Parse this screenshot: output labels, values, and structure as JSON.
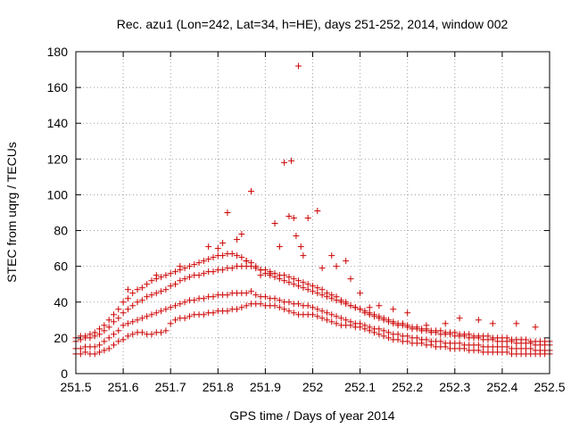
{
  "chart_data": {
    "type": "scatter",
    "title": "Rec. azu1 (Lon=242, Lat=34, h=HE), days 251-252, 2014, window 002",
    "xlabel": "GPS time / Days of year 2014",
    "ylabel": "STEC from uqrg / TECUs",
    "xlim": [
      251.5,
      252.5
    ],
    "ylim": [
      0,
      180
    ],
    "xticks": [
      251.5,
      251.6,
      251.7,
      251.8,
      251.9,
      252,
      252.1,
      252.2,
      252.3,
      252.4,
      252.5
    ],
    "xtick_labels": [
      "251.5",
      "251.6",
      "251.7",
      "251.8",
      "251.9",
      "252",
      "252.1",
      "252.2",
      "252.3",
      "252.4",
      "252.5"
    ],
    "yticks": [
      0,
      20,
      40,
      60,
      80,
      100,
      120,
      140,
      160,
      180
    ],
    "ytick_labels": [
      "0",
      "20",
      "40",
      "60",
      "80",
      "100",
      "120",
      "140",
      "160",
      "180"
    ],
    "grid": true,
    "legend": "none",
    "marker": "plus",
    "color": "#cc0000",
    "series": [
      {
        "x": [
          251.5,
          251.51,
          251.52,
          251.53,
          251.54,
          251.55,
          251.56,
          251.57,
          251.58,
          251.59,
          251.6,
          251.61,
          251.62,
          251.63,
          251.64,
          251.65,
          251.66,
          251.67,
          251.68,
          251.69,
          251.7,
          251.71,
          251.72,
          251.73,
          251.74,
          251.75,
          251.76,
          251.77,
          251.78,
          251.79,
          251.8,
          251.81,
          251.82,
          251.83,
          251.84,
          251.85,
          251.86,
          251.87,
          251.88,
          251.89,
          251.9,
          251.91,
          251.92,
          251.93,
          251.94,
          251.95,
          251.96,
          251.97,
          251.98,
          251.99,
          252,
          252.01,
          252.02,
          252.03,
          252.04,
          252.05,
          252.06,
          252.07,
          252.08,
          252.09,
          252.1,
          252.11,
          252.12,
          252.13,
          252.14,
          252.15,
          252.16,
          252.17,
          252.18,
          252.19,
          252.2,
          252.21,
          252.22,
          252.23,
          252.24,
          252.25,
          252.26,
          252.27,
          252.28,
          252.29,
          252.3,
          252.31,
          252.32,
          252.33,
          252.34,
          252.35,
          252.36,
          252.37,
          252.38,
          252.39,
          252.4,
          252.41,
          252.42,
          252.43,
          252.44,
          252.45,
          252.46,
          252.47,
          252.48,
          252.49,
          252.5
        ],
        "y": [
          11,
          11,
          12,
          11,
          11,
          12,
          13,
          14,
          16,
          18,
          19,
          21,
          22,
          23,
          23,
          22,
          22,
          23,
          23,
          24,
          28,
          30,
          31,
          31,
          32,
          33,
          33,
          33,
          34,
          34,
          35,
          35,
          35,
          36,
          36,
          37,
          38,
          39,
          39,
          39,
          38,
          38,
          38,
          37,
          36,
          35,
          34,
          33,
          33,
          33,
          33,
          32,
          31,
          30,
          29,
          28,
          27,
          27,
          27,
          26,
          26,
          25,
          24,
          23,
          22,
          21,
          20,
          19,
          19,
          18,
          18,
          17,
          17,
          17,
          16,
          16,
          15,
          15,
          15,
          14,
          14,
          14,
          14,
          13,
          13,
          13,
          12,
          12,
          12,
          12,
          12,
          12,
          11,
          11,
          11,
          11,
          11,
          11,
          11,
          11,
          11
        ]
      },
      {
        "x": [
          251.5,
          251.51,
          251.52,
          251.53,
          251.54,
          251.55,
          251.56,
          251.57,
          251.58,
          251.59,
          251.6,
          251.61,
          251.62,
          251.63,
          251.64,
          251.65,
          251.66,
          251.67,
          251.68,
          251.69,
          251.7,
          251.71,
          251.72,
          251.73,
          251.74,
          251.75,
          251.76,
          251.77,
          251.78,
          251.79,
          251.8,
          251.81,
          251.82,
          251.83,
          251.84,
          251.85,
          251.86,
          251.87,
          251.88,
          251.89,
          251.9,
          251.91,
          251.92,
          251.93,
          251.94,
          251.95,
          251.96,
          251.97,
          251.98,
          251.99,
          252,
          252.01,
          252.02,
          252.03,
          252.04,
          252.05,
          252.06,
          252.07,
          252.08,
          252.09,
          252.1,
          252.11,
          252.12,
          252.13,
          252.14,
          252.15,
          252.16,
          252.17,
          252.18,
          252.19,
          252.2,
          252.21,
          252.22,
          252.23,
          252.24,
          252.25,
          252.26,
          252.27,
          252.28,
          252.29,
          252.3,
          252.31,
          252.32,
          252.33,
          252.34,
          252.35,
          252.36,
          252.37,
          252.38,
          252.39,
          252.4,
          252.41,
          252.42,
          252.43,
          252.44,
          252.45,
          252.46,
          252.47,
          252.48,
          252.49,
          252.5
        ],
        "y": [
          14,
          14,
          15,
          15,
          15,
          16,
          18,
          20,
          22,
          24,
          27,
          28,
          29,
          30,
          31,
          32,
          33,
          34,
          35,
          36,
          37,
          38,
          39,
          40,
          41,
          41,
          42,
          42,
          43,
          43,
          44,
          44,
          44,
          45,
          45,
          45,
          45,
          46,
          44,
          43,
          43,
          42,
          42,
          41,
          40,
          40,
          39,
          39,
          38,
          38,
          37,
          36,
          35,
          34,
          33,
          32,
          31,
          30,
          29,
          28,
          28,
          27,
          26,
          25,
          25,
          24,
          23,
          22,
          22,
          21,
          21,
          20,
          20,
          19,
          19,
          18,
          18,
          18,
          17,
          17,
          17,
          17,
          16,
          16,
          16,
          16,
          15,
          15,
          15,
          15,
          15,
          15,
          14,
          14,
          14,
          14,
          14,
          13,
          13,
          13,
          13
        ]
      },
      {
        "x": [
          251.5,
          251.51,
          251.52,
          251.53,
          251.54,
          251.55,
          251.56,
          251.57,
          251.58,
          251.59,
          251.6,
          251.61,
          251.62,
          251.63,
          251.64,
          251.65,
          251.66,
          251.67,
          251.68,
          251.69,
          251.7,
          251.71,
          251.72,
          251.73,
          251.74,
          251.75,
          251.76,
          251.77,
          251.78,
          251.79,
          251.8,
          251.81,
          251.82,
          251.83,
          251.84,
          251.85,
          251.86,
          251.87,
          251.88,
          251.89,
          251.9,
          251.91,
          251.92,
          251.93,
          251.94,
          251.95,
          251.96,
          251.97,
          251.98,
          251.99,
          252,
          252.01,
          252.02,
          252.03,
          252.04,
          252.05,
          252.06,
          252.07,
          252.08,
          252.09,
          252.1,
          252.11,
          252.12,
          252.13,
          252.14,
          252.15,
          252.16,
          252.17,
          252.18,
          252.19,
          252.2,
          252.21,
          252.22,
          252.23,
          252.24,
          252.25,
          252.26,
          252.27,
          252.28,
          252.29,
          252.3,
          252.31,
          252.32,
          252.33,
          252.34,
          252.35,
          252.36,
          252.37,
          252.38,
          252.39,
          252.4,
          252.41,
          252.42,
          252.43,
          252.44,
          252.45,
          252.46,
          252.47,
          252.48,
          252.49,
          252.5
        ],
        "y": [
          18,
          19,
          20,
          20,
          21,
          22,
          24,
          26,
          29,
          31,
          34,
          36,
          38,
          40,
          41,
          43,
          44,
          45,
          46,
          47,
          49,
          50,
          52,
          53,
          54,
          55,
          55,
          56,
          57,
          57,
          58,
          58,
          59,
          59,
          60,
          60,
          60,
          60,
          59,
          58,
          58,
          57,
          56,
          55,
          55,
          54,
          53,
          52,
          51,
          50,
          49,
          48,
          47,
          45,
          44,
          43,
          41,
          40,
          38,
          37,
          36,
          34,
          33,
          32,
          31,
          30,
          29,
          28,
          27,
          27,
          26,
          25,
          25,
          24,
          24,
          23,
          23,
          22,
          22,
          22,
          21,
          21,
          21,
          20,
          20,
          20,
          19,
          19,
          19,
          18,
          18,
          18,
          18,
          17,
          17,
          17,
          17,
          16,
          16,
          16,
          16
        ]
      },
      {
        "x": [
          251.5,
          251.51,
          251.52,
          251.53,
          251.54,
          251.55,
          251.56,
          251.57,
          251.58,
          251.59,
          251.6,
          251.61,
          251.62,
          251.63,
          251.64,
          251.65,
          251.66,
          251.67,
          251.68,
          251.69,
          251.7,
          251.71,
          251.72,
          251.73,
          251.74,
          251.75,
          251.76,
          251.77,
          251.78,
          251.79,
          251.8,
          251.81,
          251.82,
          251.83,
          251.84,
          251.85,
          251.86,
          251.87,
          251.88,
          251.89,
          251.9,
          251.91,
          251.92,
          251.93,
          251.94,
          251.95,
          251.96,
          251.97,
          251.98,
          251.99,
          252,
          252.01,
          252.02,
          252.03,
          252.04,
          252.05,
          252.06,
          252.07,
          252.08,
          252.09,
          252.1,
          252.11,
          252.12,
          252.13,
          252.14,
          252.15,
          252.16,
          252.17,
          252.18,
          252.19,
          252.2,
          252.21,
          252.22,
          252.23,
          252.24,
          252.25,
          252.26,
          252.27,
          252.28,
          252.29,
          252.3,
          252.31,
          252.32,
          252.33,
          252.34,
          252.35,
          252.36,
          252.37,
          252.38,
          252.39,
          252.4,
          252.41,
          252.42,
          252.43,
          252.44,
          252.45,
          252.46,
          252.47,
          252.48,
          252.49,
          252.5
        ],
        "y": [
          20,
          21,
          21,
          22,
          23,
          25,
          27,
          30,
          33,
          36,
          40,
          42,
          45,
          47,
          48,
          50,
          52,
          53,
          54,
          55,
          56,
          57,
          58,
          59,
          60,
          61,
          62,
          63,
          64,
          65,
          66,
          66,
          67,
          67,
          66,
          65,
          63,
          62,
          60,
          58,
          56,
          55,
          54,
          53,
          52,
          51,
          50,
          49,
          48,
          47,
          46,
          45,
          44,
          43,
          42,
          41,
          40,
          39,
          38,
          37,
          36,
          35,
          34,
          33,
          32,
          31,
          30,
          29,
          28,
          28,
          27,
          26,
          26,
          25,
          25,
          24,
          24,
          24,
          23,
          23,
          23,
          22,
          22,
          22,
          21,
          21,
          21,
          21,
          20,
          20,
          20,
          20,
          19,
          19,
          19,
          19,
          18,
          18,
          18,
          18,
          18
        ]
      },
      {
        "x": [
          251.61,
          251.67,
          251.72,
          251.78,
          251.8,
          251.81,
          251.82,
          251.84,
          251.85,
          251.86,
          251.87,
          251.89,
          251.91,
          251.92,
          251.93,
          251.94,
          251.95,
          251.955,
          251.96,
          251.965,
          251.97,
          251.975,
          251.98,
          251.99,
          252.01,
          252.02,
          252.04,
          252.05,
          252.07,
          252.08,
          252.1,
          252.12,
          252.14,
          252.17,
          252.2,
          252.24,
          252.28,
          252.31,
          252.35,
          252.38,
          252.43,
          252.47
        ],
        "y": [
          47,
          55,
          60,
          71,
          70,
          73,
          90,
          75,
          78,
          63,
          102,
          55,
          56,
          84,
          71,
          118,
          88,
          119,
          87,
          77,
          172,
          71,
          66,
          87,
          91,
          59,
          66,
          60,
          63,
          53,
          45,
          37,
          38,
          36,
          34,
          27,
          28,
          31,
          30,
          28,
          28,
          26
        ]
      }
    ]
  }
}
